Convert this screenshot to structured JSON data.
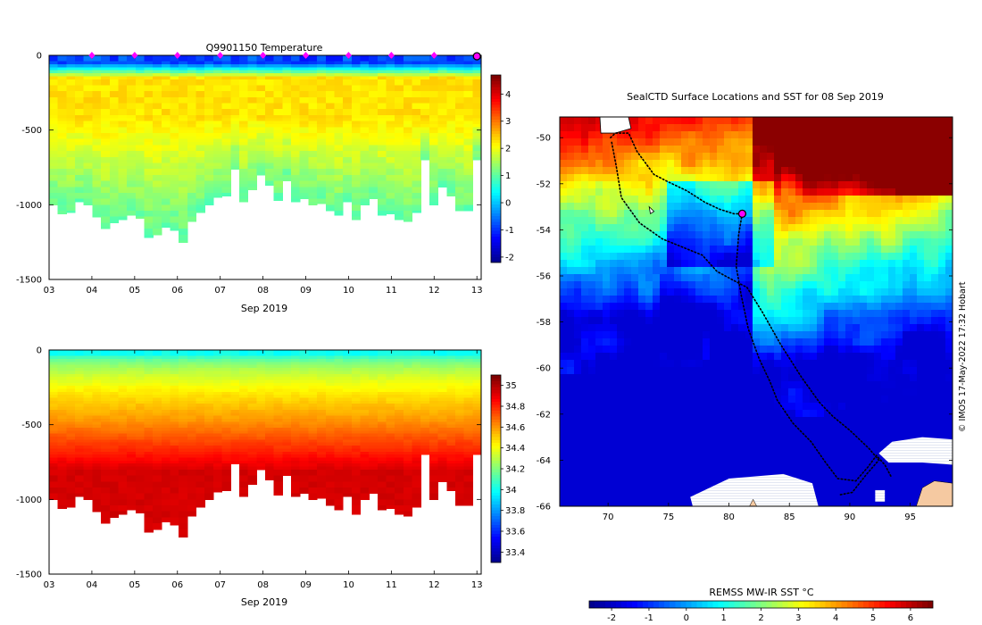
{
  "page": {
    "credit": "© IMOS 17-May-2022 17:32 Hobart"
  },
  "colors": {
    "jet": [
      "#00008f",
      "#0000ff",
      "#0080ff",
      "#00ffff",
      "#80ff80",
      "#ffff00",
      "#ff8000",
      "#ff0000",
      "#800000"
    ],
    "profile_marker": "#ff00ff",
    "track": "#000000",
    "land": "#f5c9a1",
    "ice_stripes": "#d0d8ea"
  },
  "chart_data": [
    {
      "id": "temperature_section",
      "type": "heatmap",
      "title": "Q9901150  Temperature",
      "xlabel": "Sep 2019",
      "ylabel": "",
      "x_tick_labels": [
        "03",
        "04",
        "05",
        "06",
        "07",
        "08",
        "09",
        "10",
        "11",
        "12",
        "13"
      ],
      "x_ticks": [
        3,
        4,
        5,
        6,
        7,
        8,
        9,
        10,
        11,
        12,
        13
      ],
      "xlim": [
        3.0,
        13.1
      ],
      "y_ticks": [
        0,
        -500,
        -1000,
        -1500
      ],
      "y_tick_labels": [
        "0",
        "-500",
        "-1000",
        "-1500"
      ],
      "ylim": [
        -1500,
        0
      ],
      "profile_marker_days": [
        4,
        5,
        6,
        7,
        8,
        9,
        10,
        11,
        12
      ],
      "current_profile_day": 13,
      "colorbar": {
        "min": -2.2,
        "max": 4.7,
        "ticks": [
          -2,
          -1,
          0,
          1,
          2,
          3,
          4
        ],
        "tick_labels": [
          "-2",
          "-1",
          "0",
          "1",
          "2",
          "3",
          "4"
        ]
      },
      "profile_bottom_depths_m": [
        -1000,
        -1060,
        -1050,
        -980,
        -1000,
        -1080,
        -1160,
        -1120,
        -1100,
        -1070,
        -1090,
        -1220,
        -1200,
        -1150,
        -1170,
        -1250,
        -1110,
        -1050,
        -1000,
        -950,
        -940,
        -760,
        -980,
        -900,
        -800,
        -870,
        -970,
        -840,
        -980,
        -960,
        -1000,
        -990,
        -1040,
        -1070,
        -980,
        -1100,
        -1000,
        -960,
        -1070,
        -1060,
        -1100,
        -1110,
        -1050,
        -700,
        -1000,
        -880,
        -940,
        -1040,
        -1040,
        -700
      ],
      "surface_value": -0.9,
      "deep_value": 1.0,
      "interior_value": 2.3
    },
    {
      "id": "salinity_section",
      "type": "heatmap",
      "title": "",
      "xlabel": "Sep 2019",
      "ylabel": "",
      "x_tick_labels": [
        "03",
        "04",
        "05",
        "06",
        "07",
        "08",
        "09",
        "10",
        "11",
        "12",
        "13"
      ],
      "x_ticks": [
        3,
        4,
        5,
        6,
        7,
        8,
        9,
        10,
        11,
        12,
        13
      ],
      "xlim": [
        3.0,
        13.1
      ],
      "y_ticks": [
        0,
        -500,
        -1000,
        -1500
      ],
      "y_tick_labels": [
        "0",
        "-500",
        "-1000",
        "-1500"
      ],
      "ylim": [
        -1500,
        0
      ],
      "colorbar": {
        "min": 33.3,
        "max": 35.1,
        "ticks": [
          33.4,
          33.6,
          33.8,
          34,
          34.2,
          34.4,
          34.6,
          34.8,
          35
        ],
        "tick_labels": [
          "33.4",
          "33.6",
          "33.8",
          "34",
          "34.2",
          "34.4",
          "34.6",
          "34.8",
          "35"
        ]
      },
      "profile_bottom_depths_m": [
        -1000,
        -1060,
        -1050,
        -980,
        -1000,
        -1080,
        -1160,
        -1120,
        -1100,
        -1070,
        -1090,
        -1220,
        -1200,
        -1150,
        -1170,
        -1250,
        -1110,
        -1050,
        -1000,
        -950,
        -940,
        -760,
        -980,
        -900,
        -800,
        -870,
        -970,
        -840,
        -980,
        -960,
        -1000,
        -990,
        -1040,
        -1070,
        -980,
        -1100,
        -1000,
        -960,
        -1070,
        -1060,
        -1100,
        -1110,
        -1050,
        -700,
        -1000,
        -880,
        -940,
        -1040,
        -1040,
        -700
      ],
      "surface_value": 34.0,
      "mid_value": 34.6,
      "deep_value": 34.95
    },
    {
      "id": "sst_map",
      "type": "heatmap",
      "title": "SealCTD Surface Locations and SST for 08 Sep 2019",
      "xlabel": "",
      "ylabel": "",
      "x_ticks": [
        70,
        75,
        80,
        85,
        90,
        95
      ],
      "x_tick_labels": [
        "70",
        "75",
        "80",
        "85",
        "90",
        "95"
      ],
      "xlim": [
        66,
        98.5
      ],
      "y_ticks": [
        -50,
        -52,
        -54,
        -56,
        -58,
        -60,
        -62,
        -64,
        -66
      ],
      "y_tick_labels": [
        "-50",
        "-52",
        "-54",
        "-56",
        "-58",
        "-60",
        "-62",
        "-64",
        "-66"
      ],
      "ylim": [
        -66,
        -49.1
      ],
      "colorbar": {
        "label": "REMSS MW-IR SST °C",
        "min": -2.6,
        "max": 6.6,
        "ticks": [
          -2,
          -1,
          0,
          1,
          2,
          3,
          4,
          5,
          6
        ],
        "tick_labels": [
          "-2",
          "-1",
          "0",
          "1",
          "2",
          "3",
          "4",
          "5",
          "6"
        ]
      },
      "current_position": {
        "lon": 81.1,
        "lat": -53.3
      },
      "track_segments": [
        [
          [
            70.2,
            -50.0
          ],
          [
            70.6,
            -49.8
          ],
          [
            71.7,
            -49.8
          ],
          [
            72.4,
            -50.6
          ],
          [
            73.8,
            -51.6
          ],
          [
            74.9,
            -51.9
          ],
          [
            76.5,
            -52.3
          ],
          [
            78.0,
            -52.8
          ],
          [
            79.2,
            -53.1
          ],
          [
            80.4,
            -53.3
          ],
          [
            81.1,
            -53.3
          ]
        ],
        [
          [
            70.3,
            -50.2
          ],
          [
            70.7,
            -51.3
          ],
          [
            71.1,
            -52.6
          ],
          [
            72.6,
            -53.7
          ],
          [
            74.5,
            -54.4
          ],
          [
            76.4,
            -54.8
          ],
          [
            77.8,
            -55.1
          ],
          [
            79.0,
            -55.8
          ],
          [
            80.4,
            -56.2
          ],
          [
            81.5,
            -56.5
          ]
        ],
        [
          [
            81.1,
            -53.3
          ],
          [
            80.8,
            -54.2
          ],
          [
            80.6,
            -55.6
          ],
          [
            81.0,
            -56.8
          ],
          [
            81.6,
            -58.3
          ],
          [
            82.5,
            -59.6
          ],
          [
            83.4,
            -60.6
          ],
          [
            84.0,
            -61.4
          ],
          [
            85.3,
            -62.4
          ],
          [
            86.8,
            -63.2
          ],
          [
            88.0,
            -64.1
          ],
          [
            89.0,
            -64.8
          ],
          [
            90.5,
            -64.9
          ],
          [
            91.5,
            -64.3
          ],
          [
            92.2,
            -63.8
          ],
          [
            92.9,
            -64.2
          ],
          [
            93.4,
            -64.7
          ]
        ],
        [
          [
            81.5,
            -56.5
          ],
          [
            82.8,
            -57.6
          ],
          [
            84.3,
            -59.0
          ],
          [
            86.0,
            -60.4
          ],
          [
            87.5,
            -61.5
          ],
          [
            88.6,
            -62.1
          ],
          [
            90.0,
            -62.7
          ],
          [
            91.6,
            -63.5
          ],
          [
            92.4,
            -64.0
          ],
          [
            91.4,
            -64.6
          ],
          [
            90.2,
            -65.4
          ],
          [
            89.2,
            -65.5
          ]
        ]
      ],
      "ice_patches": [
        {
          "lon": [
            76.8,
            80.0,
            84.5,
            86.9,
            87.4,
            84.0,
            80.2,
            77.0
          ],
          "lat": [
            -65.6,
            -64.8,
            -64.6,
            -65.0,
            -66.0,
            -66.0,
            -66.0,
            -66.0
          ]
        },
        {
          "lon": [
            92.4,
            93.5,
            96.0,
            98.5,
            98.5,
            96.0,
            93.2
          ],
          "lat": [
            -63.7,
            -63.2,
            -63.0,
            -63.1,
            -64.2,
            -64.1,
            -64.1
          ]
        },
        {
          "lon": [
            92.1,
            92.9,
            92.9,
            92.1
          ],
          "lat": [
            -65.3,
            -65.3,
            -65.8,
            -65.8
          ]
        }
      ],
      "land_patches": [
        {
          "lon": [
            96.0,
            97.0,
            98.5,
            98.5,
            95.5
          ],
          "lat": [
            -65.2,
            -64.9,
            -65.0,
            -66.0,
            -66.0
          ]
        },
        {
          "lon": [
            81.7,
            82.0,
            82.3
          ],
          "lat": [
            -66.0,
            -65.7,
            -66.0
          ]
        }
      ],
      "islands": [
        {
          "lon": [
            69.3,
            71.6,
            71.9,
            70.6,
            69.4
          ],
          "lat": [
            -48.9,
            -48.9,
            -49.6,
            -49.8,
            -49.8
          ]
        },
        {
          "lon": [
            73.4,
            73.8,
            73.5
          ],
          "lat": [
            -53.0,
            -53.2,
            -53.3
          ]
        }
      ]
    }
  ]
}
